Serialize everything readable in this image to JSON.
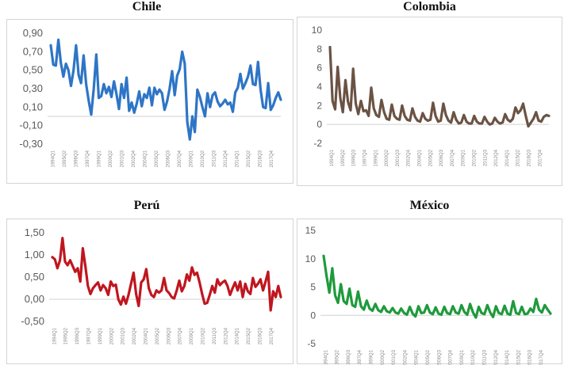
{
  "chart_data": [
    {
      "type": "line",
      "title": "Chile",
      "color": "#2e75c6",
      "ylim": [
        -0.3,
        0.9
      ],
      "yticks": [
        "0,90",
        "0,70",
        "0,50",
        "0,30",
        "0,10",
        "-0,10",
        "-0,30"
      ],
      "ytick_values": [
        0.9,
        0.7,
        0.5,
        0.3,
        0.1,
        -0.1,
        -0.3
      ],
      "baseline": 0,
      "xtick_labels": [
        "1994Q1",
        "1995Q2",
        "1996Q3",
        "1997Q4",
        "1999Q1",
        "2000Q2",
        "2001Q3",
        "2002Q4",
        "2004Q1",
        "2005Q2",
        "2006Q3",
        "2007Q4",
        "2009Q1",
        "2010Q2",
        "2011Q3",
        "2012Q4",
        "2014Q1",
        "2015Q2",
        "2016Q3",
        "2017Q4"
      ],
      "series": [
        {
          "values": [
            0.77,
            0.56,
            0.55,
            0.83,
            0.58,
            0.43,
            0.57,
            0.5,
            0.33,
            0.5,
            0.77,
            0.45,
            0.36,
            0.66,
            0.35,
            0.17,
            0.02,
            0.3,
            0.67,
            0.2,
            0.22,
            0.35,
            0.25,
            0.32,
            0.21,
            0.38,
            0.24,
            0.08,
            0.35,
            0.2,
            0.42,
            0.06,
            0.15,
            0.04,
            0.14,
            0.27,
            0.11,
            0.24,
            0.2,
            0.31,
            0.12,
            0.31,
            0.24,
            0.29,
            0.25,
            0.07,
            0.16,
            0.3,
            0.49,
            0.23,
            0.44,
            0.51,
            0.7,
            0.57,
            -0.06,
            -0.25,
            0.0,
            -0.17,
            0.29,
            0.21,
            0.1,
            0.0,
            0.25,
            0.1,
            0.23,
            0.26,
            0.16,
            0.11,
            0.14,
            0.18,
            0.13,
            0.15,
            0.05,
            0.26,
            0.31,
            0.46,
            0.3,
            0.36,
            0.43,
            0.55,
            0.35,
            0.34,
            0.59,
            0.29,
            0.1,
            0.09,
            0.36,
            0.07,
            0.12,
            0.2,
            0.26,
            0.18
          ]
        }
      ]
    },
    {
      "type": "line",
      "title": "Colombia",
      "color": "#6b5344",
      "ylim": [
        -2,
        10
      ],
      "yticks": [
        "10",
        "8",
        "6",
        "4",
        "2",
        "0",
        "-2"
      ],
      "ytick_values": [
        10,
        8,
        6,
        4,
        2,
        0,
        -2
      ],
      "baseline": 0,
      "xtick_labels": [
        "1994Q1",
        "1995Q2",
        "1996Q3",
        "1997Q4",
        "1999Q1",
        "2000Q2",
        "2001Q3",
        "2002Q4",
        "2004Q1",
        "2005Q2",
        "2006Q3",
        "2007Q4",
        "2009Q1",
        "2010Q2",
        "2011Q3",
        "2012Q4",
        "2014Q1",
        "2015Q2",
        "2016Q3",
        "2017Q4"
      ],
      "series": [
        {
          "values": [
            8.2,
            2.5,
            1.6,
            6.1,
            2.8,
            1.3,
            4.7,
            2.4,
            1.5,
            5.9,
            2.2,
            1.1,
            2.5,
            1.4,
            1.5,
            0.9,
            3.9,
            1.7,
            1.0,
            0.8,
            2.6,
            1.3,
            0.6,
            0.5,
            2.1,
            0.9,
            0.6,
            0.5,
            2.0,
            0.9,
            0.5,
            0.4,
            1.7,
            0.8,
            0.4,
            0.3,
            1.2,
            0.6,
            0.4,
            0.5,
            2.3,
            0.9,
            0.3,
            0.4,
            2.2,
            1.0,
            0.4,
            0.2,
            1.3,
            0.5,
            0.1,
            0.2,
            1.0,
            0.3,
            0.1,
            0.1,
            0.9,
            0.3,
            0.1,
            0.1,
            0.8,
            0.3,
            0.0,
            0.1,
            0.7,
            0.3,
            0.1,
            0.2,
            1.1,
            0.5,
            0.3,
            0.6,
            1.8,
            1.2,
            1.5,
            2.2,
            0.9,
            -0.2,
            0.2,
            0.6,
            1.3,
            0.4,
            0.3,
            0.8,
            1.0,
            0.9
          ]
        }
      ]
    },
    {
      "type": "line",
      "title": "Perú",
      "color": "#c0161f",
      "ylim": [
        -0.5,
        1.5
      ],
      "yticks": [
        "1,50",
        "1,00",
        "0,50",
        "0,00",
        "-0,50"
      ],
      "ytick_values": [
        1.5,
        1.0,
        0.5,
        0.0,
        -0.5
      ],
      "baseline": 0,
      "xtick_labels": [
        "1994Q1",
        "1995Q2",
        "1996Q3",
        "1997Q4",
        "1999Q1",
        "2000Q2",
        "2001Q3",
        "2002Q4",
        "2004Q1",
        "2005Q2",
        "2006Q3",
        "2007Q4",
        "2009Q1",
        "2010Q2",
        "2011Q3",
        "2012Q4",
        "2014Q1",
        "2015Q2",
        "2016Q3",
        "2017Q4"
      ],
      "series": [
        {
          "values": [
            0.95,
            0.9,
            0.7,
            0.88,
            1.38,
            0.85,
            0.77,
            0.88,
            0.75,
            0.62,
            0.7,
            0.4,
            1.15,
            0.75,
            0.3,
            0.12,
            0.25,
            0.32,
            0.38,
            0.2,
            0.32,
            0.25,
            0.1,
            0.4,
            0.3,
            0.33,
            0.0,
            -0.12,
            0.06,
            -0.1,
            0.1,
            0.35,
            0.6,
            0.12,
            -0.15,
            0.38,
            0.45,
            0.68,
            0.25,
            0.1,
            0.05,
            0.2,
            0.15,
            0.2,
            0.48,
            0.2,
            0.14,
            0.05,
            0.02,
            0.2,
            0.42,
            0.18,
            0.3,
            0.56,
            0.42,
            0.72,
            0.55,
            0.6,
            0.38,
            0.12,
            -0.1,
            -0.08,
            0.1,
            0.3,
            0.15,
            0.45,
            0.32,
            0.38,
            0.42,
            0.3,
            0.1,
            0.25,
            0.38,
            0.2,
            0.4,
            0.05,
            0.35,
            0.18,
            0.12,
            0.48,
            0.28,
            0.35,
            0.45,
            0.2,
            0.4,
            0.62,
            -0.25,
            0.18,
            0.05,
            0.3,
            0.05
          ]
        }
      ]
    },
    {
      "type": "line",
      "title": "México",
      "color": "#1f9a3c",
      "ylim": [
        -5,
        15
      ],
      "yticks": [
        "15",
        "10",
        "5",
        "0",
        "-5"
      ],
      "ytick_values": [
        15,
        10,
        5,
        0,
        -5
      ],
      "baseline": 0,
      "xtick_labels": [
        "1994Q1",
        "1995Q2",
        "1996Q3",
        "1997Q4",
        "1999Q1",
        "2000Q2",
        "2001Q3",
        "2002Q4",
        "2004Q1",
        "2005Q2",
        "2006Q3",
        "2007Q4",
        "2009Q1",
        "2010Q2",
        "2011Q3",
        "2012Q4",
        "2014Q1",
        "2015Q2",
        "2016Q3",
        "2017Q4"
      ],
      "series": [
        {
          "values": [
            10.5,
            7.0,
            4.0,
            8.3,
            3.5,
            2.2,
            5.5,
            2.5,
            2.0,
            4.7,
            1.8,
            1.5,
            4.2,
            1.6,
            1.0,
            2.6,
            1.2,
            0.8,
            2.0,
            0.9,
            0.6,
            1.6,
            0.7,
            0.5,
            1.3,
            0.5,
            0.3,
            1.2,
            0.4,
            0.1,
            1.5,
            0.3,
            -0.2,
            1.6,
            0.4,
            0.5,
            1.8,
            0.5,
            0.2,
            1.4,
            0.3,
            0.1,
            1.5,
            0.4,
            0.2,
            1.6,
            0.5,
            0.3,
            1.8,
            0.6,
            0.1,
            2.0,
            0.5,
            -0.4,
            1.5,
            0.4,
            0.2,
            1.8,
            0.5,
            -0.3,
            1.6,
            0.4,
            0.2,
            1.7,
            0.3,
            0.1,
            2.5,
            0.4,
            0.2,
            1.5,
            0.2,
            0.3,
            1.2,
            0.6,
            2.9,
            1.0,
            0.5,
            1.8,
            1.0,
            0.3
          ]
        }
      ]
    }
  ]
}
